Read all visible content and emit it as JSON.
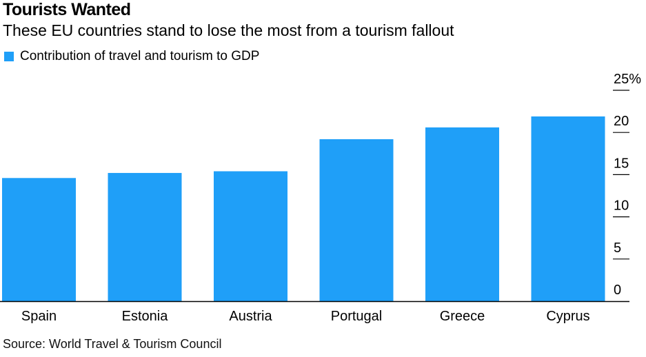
{
  "title": "Tourists Wanted",
  "subtitle": "These EU countries stand to lose the most from a tourism fallout",
  "source": "Source: World Travel & Tourism Council",
  "colors": {
    "bar": "#1f9ff8",
    "axis": "#000000"
  },
  "chart_data": {
    "type": "bar",
    "categories": [
      "Spain",
      "Estonia",
      "Austria",
      "Portugal",
      "Greece",
      "Cyprus"
    ],
    "series": [
      {
        "name": "Contribution of travel and tourism to GDP",
        "values": [
          14.6,
          15.2,
          15.4,
          19.2,
          20.6,
          21.9
        ]
      }
    ],
    "ylim": [
      0,
      25
    ],
    "yticks": [
      0,
      5,
      10,
      15,
      20,
      25
    ],
    "ytick_labels": [
      "0",
      "5",
      "10",
      "15",
      "20",
      "25%"
    ],
    "y_axis_position": "right",
    "grid": false,
    "legend_position": "top-left"
  }
}
